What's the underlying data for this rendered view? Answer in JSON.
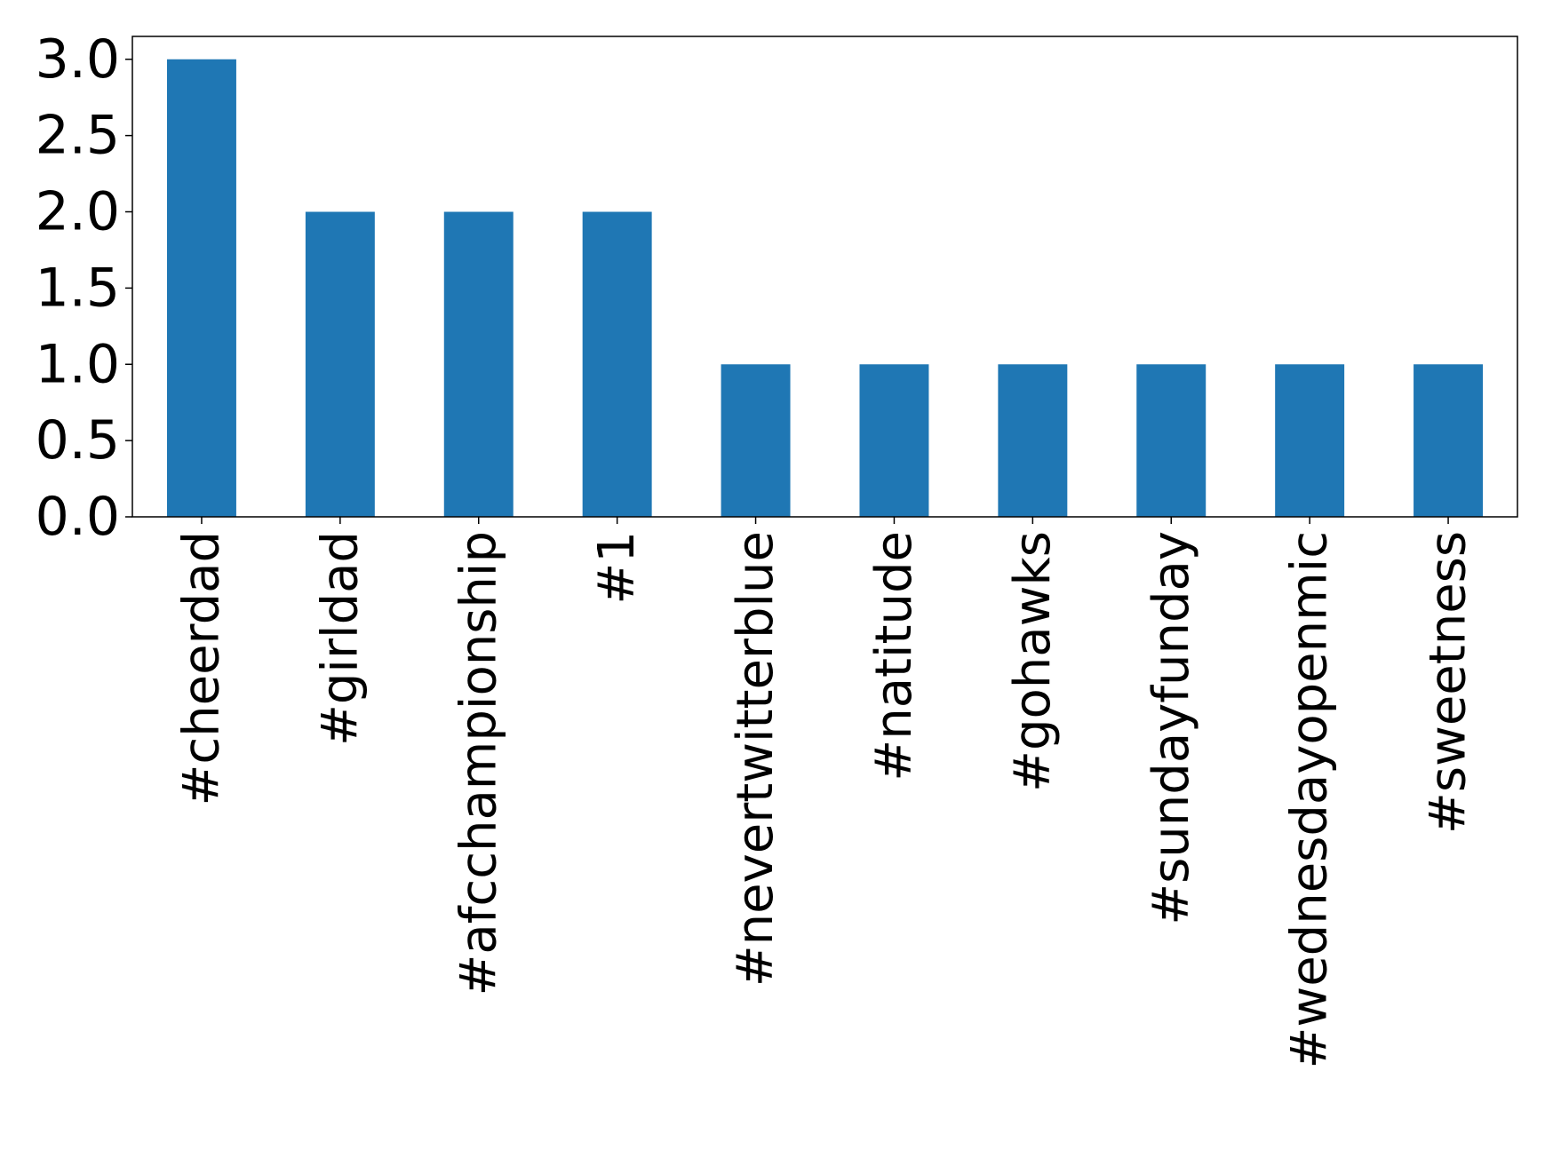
{
  "chart_data": {
    "type": "bar",
    "categories": [
      "#cheerdad",
      "#girldad",
      "#afcchampionship",
      "#1",
      "#nevertwitterblue",
      "#natitude",
      "#gohawks",
      "#sundayfunday",
      "#wednesdayopenmic",
      "#sweetness"
    ],
    "values": [
      3,
      2,
      2,
      2,
      1,
      1,
      1,
      1,
      1,
      1
    ],
    "color": "#1f77b4",
    "ylim": [
      0,
      3.15
    ],
    "yticks": [
      {
        "value": 0,
        "label": "0.0"
      },
      {
        "value": 0.5,
        "label": "0.5"
      },
      {
        "value": 1,
        "label": "1.0"
      },
      {
        "value": 1.5,
        "label": "1.5"
      },
      {
        "value": 2,
        "label": "2.0"
      },
      {
        "value": 2.5,
        "label": "2.5"
      },
      {
        "value": 3,
        "label": "3.0"
      }
    ],
    "grid": false
  }
}
